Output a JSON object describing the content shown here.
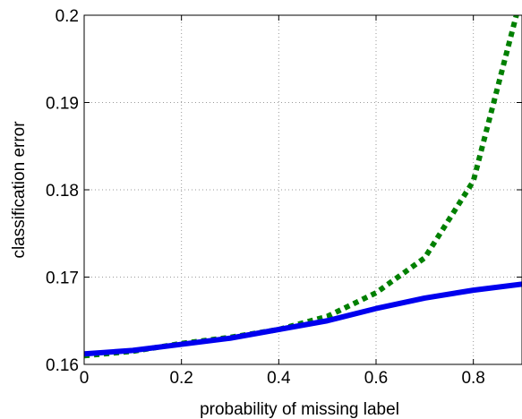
{
  "chart_data": {
    "type": "line",
    "title": "",
    "xlabel": "probability of missing label",
    "ylabel": "classification error",
    "xlim": [
      0,
      0.9
    ],
    "ylim": [
      0.16,
      0.2
    ],
    "x_ticks": [
      0,
      0.2,
      0.4,
      0.6,
      0.8
    ],
    "x_tick_labels": [
      "0",
      "0.2",
      "0.4",
      "0.6",
      "0.8"
    ],
    "y_ticks": [
      0.16,
      0.17,
      0.18,
      0.19,
      0.2
    ],
    "y_tick_labels": [
      "0.16",
      "0.17",
      "0.18",
      "0.19",
      "0.2"
    ],
    "grid": true,
    "series": [
      {
        "color": "#0000ee",
        "style": "solid",
        "x": [
          0,
          0.1,
          0.2,
          0.3,
          0.4,
          0.5,
          0.6,
          0.7,
          0.8,
          0.9
        ],
        "y": [
          0.1612,
          0.1616,
          0.1623,
          0.163,
          0.164,
          0.165,
          0.1664,
          0.1676,
          0.1685,
          0.1692
        ]
      },
      {
        "color": "#008000",
        "style": "dotted",
        "x": [
          0,
          0.1,
          0.2,
          0.3,
          0.4,
          0.5,
          0.6,
          0.7,
          0.8,
          0.9
        ],
        "y": [
          0.161,
          0.1615,
          0.1624,
          0.1631,
          0.164,
          0.1655,
          0.1682,
          0.1722,
          0.181,
          0.2025
        ]
      }
    ]
  }
}
